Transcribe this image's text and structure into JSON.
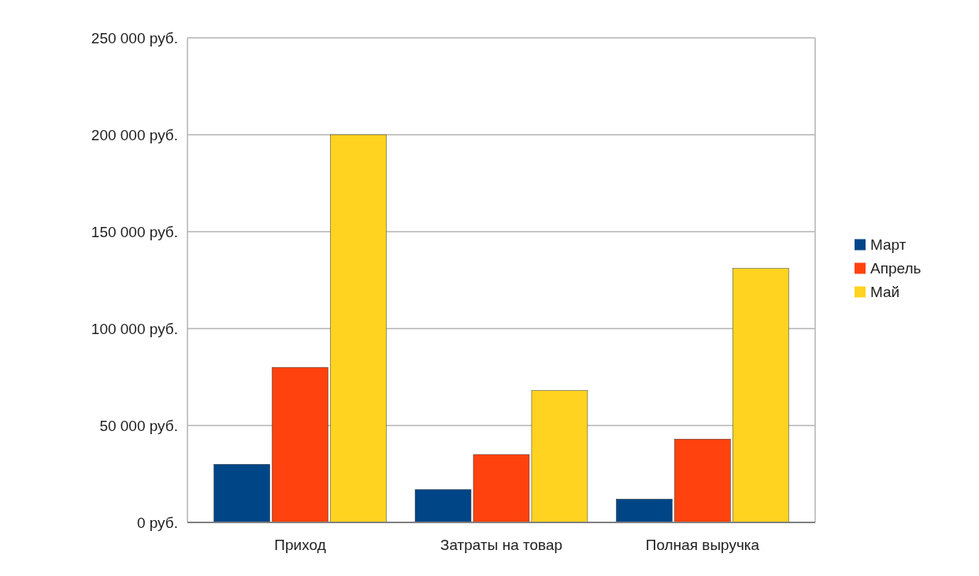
{
  "chart_data": {
    "type": "bar",
    "categories": [
      "Приход",
      "Затраты на товар",
      "Полная выручка"
    ],
    "series": [
      {
        "name": "Март",
        "color": "#004586",
        "values": [
          30000,
          17000,
          12000
        ]
      },
      {
        "name": "Апрель",
        "color": "#ff420e",
        "values": [
          80000,
          35000,
          43000
        ]
      },
      {
        "name": "Май",
        "color": "#ffd320",
        "values": [
          200000,
          68000,
          131000
        ]
      }
    ],
    "ylim": [
      0,
      250000
    ],
    "yticks": [
      {
        "value": 0,
        "label": "0 руб."
      },
      {
        "value": 50000,
        "label": "50 000 руб."
      },
      {
        "value": 100000,
        "label": "100 000 руб."
      },
      {
        "value": 150000,
        "label": "150 000 руб."
      },
      {
        "value": 200000,
        "label": "200 000 руб."
      },
      {
        "value": 250000,
        "label": "250 000 руб."
      }
    ],
    "grid": "y",
    "legend": "right"
  }
}
